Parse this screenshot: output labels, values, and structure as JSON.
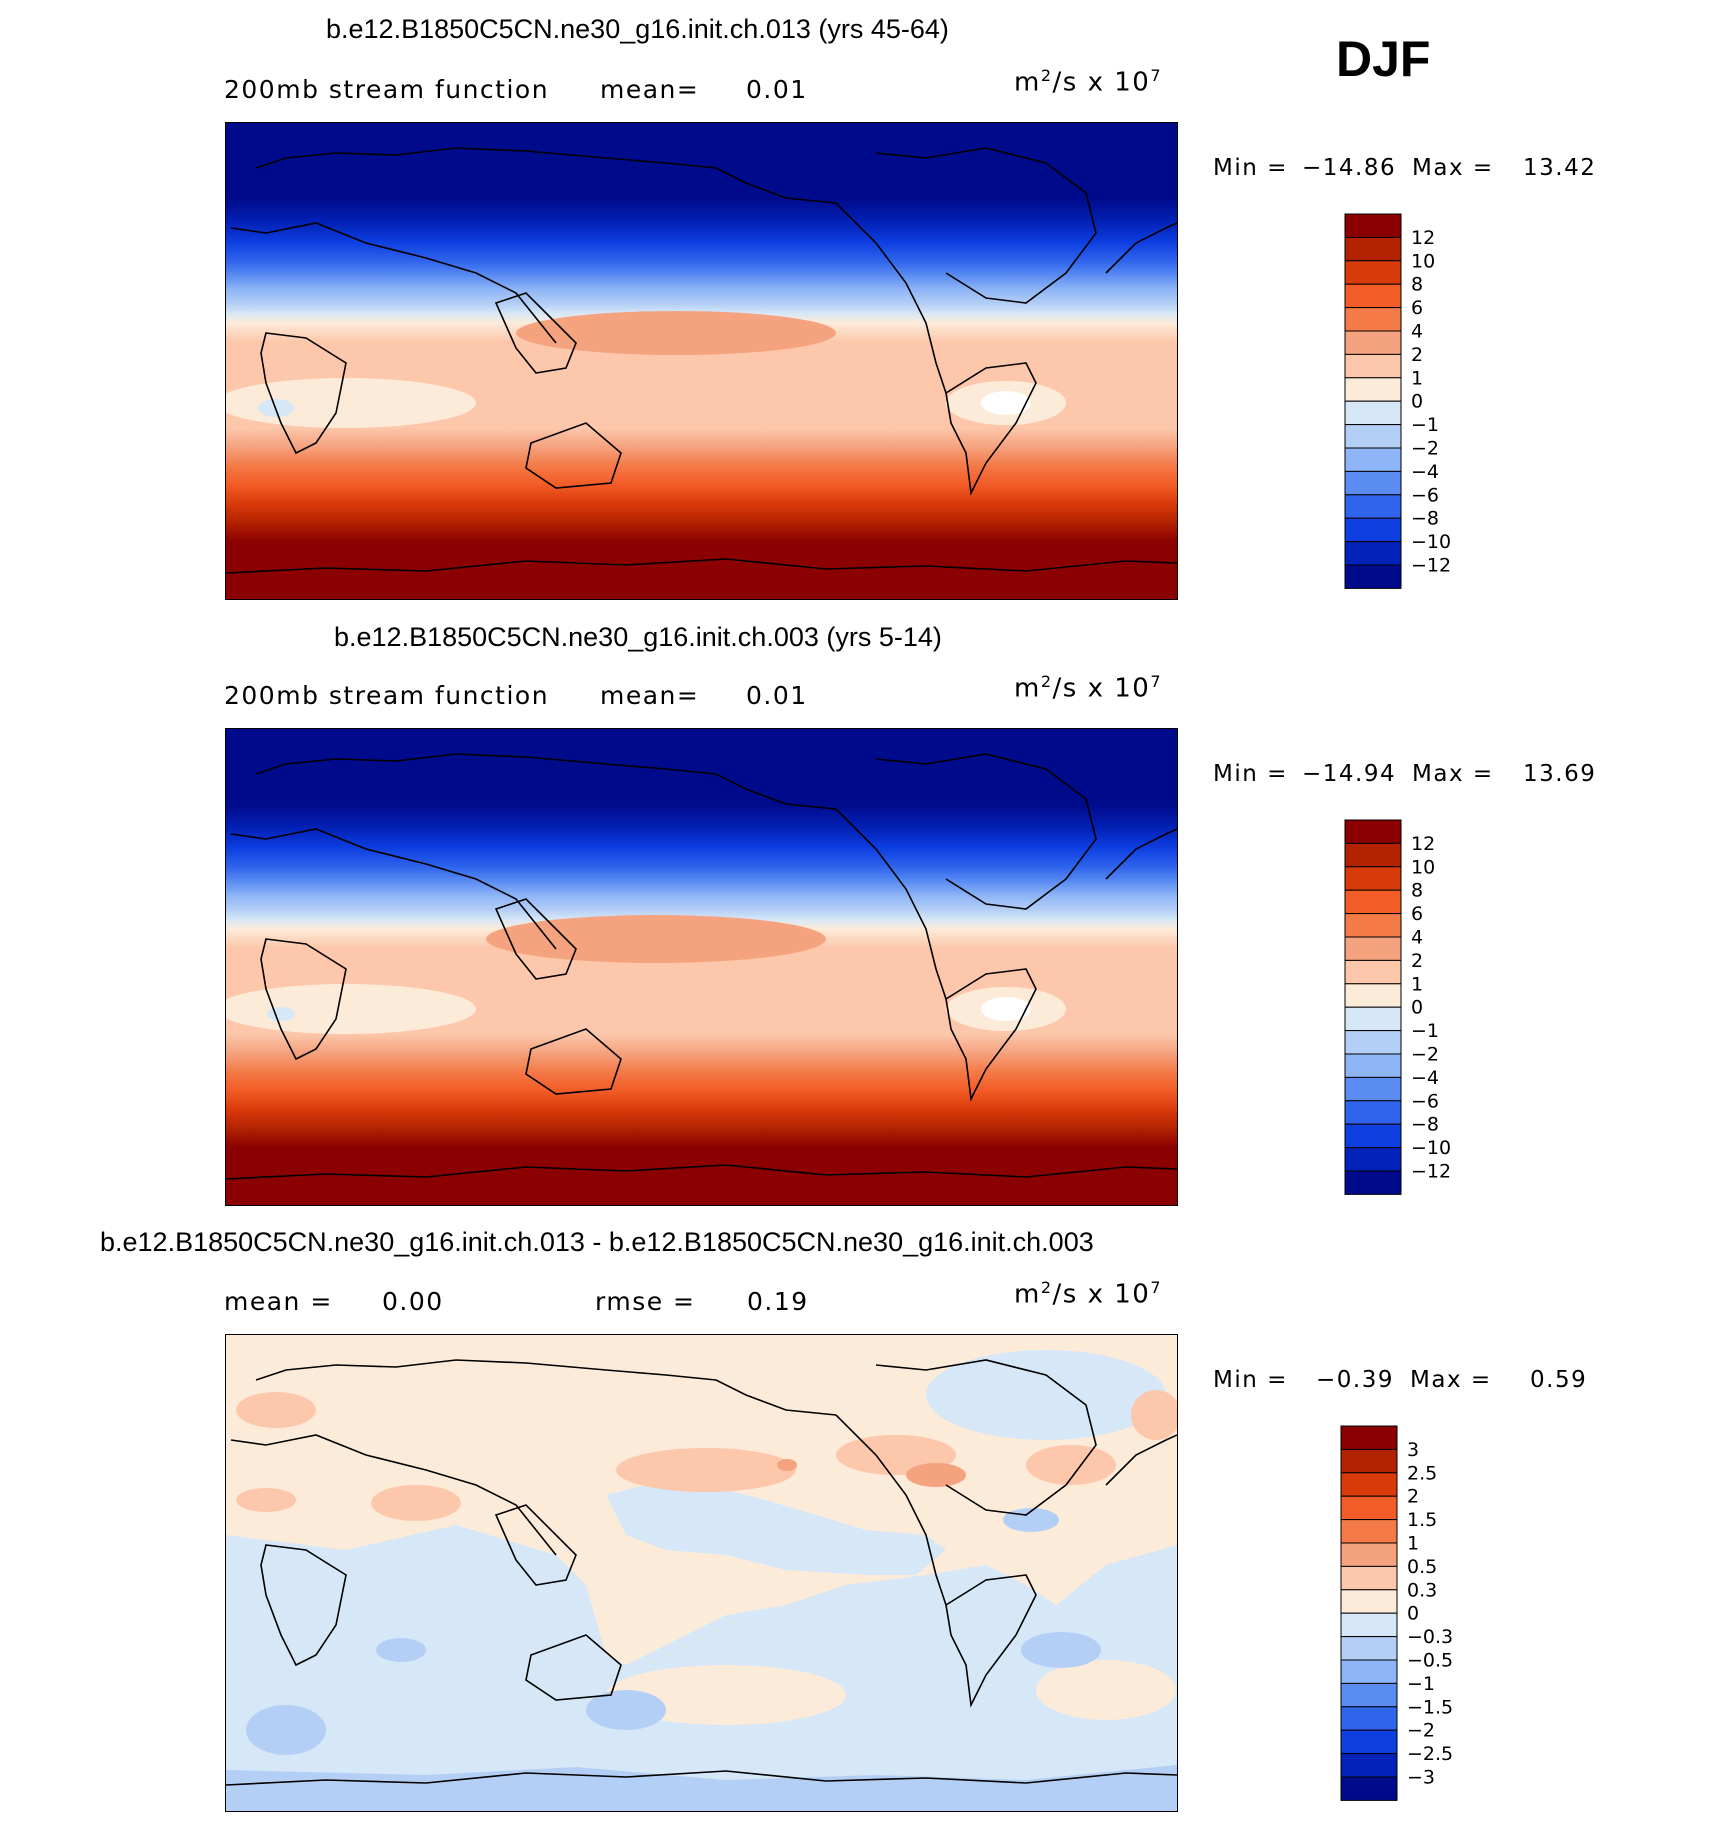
{
  "season": "DJF",
  "panels": [
    {
      "title": "b.e12.B1850C5CN.ne30_g16.init.ch.013 (yrs 45-64)",
      "left_label": "200mb stream function",
      "stat_label": "mean=",
      "stat_value": "0.01",
      "units_base": "m",
      "units_exp1": "2",
      "units_mid": "/s x 10",
      "units_exp2": "7",
      "min_label": "Min =",
      "min_value": "−14.86",
      "max_label": "Max =",
      "max_value": "13.42",
      "colorbar": {
        "labels": [
          "12",
          "10",
          "8",
          "6",
          "4",
          "2",
          "1",
          "0",
          "−1",
          "−2",
          "−4",
          "−6",
          "−8",
          "−10",
          "−12"
        ],
        "colors": [
          "#8b0000",
          "#b22200",
          "#d93a0a",
          "#f25c26",
          "#f47a48",
          "#f5a37f",
          "#fcc7ab",
          "#fdebd9",
          "#d6e7f7",
          "#b4cff5",
          "#8eb5f7",
          "#5a8cf2",
          "#2f64ec",
          "#0d3ee0",
          "#0322b8",
          "#000b8c"
        ]
      }
    },
    {
      "title": "b.e12.B1850C5CN.ne30_g16.init.ch.003 (yrs 5-14)",
      "left_label": "200mb stream function",
      "stat_label": "mean=",
      "stat_value": "0.01",
      "units_base": "m",
      "units_exp1": "2",
      "units_mid": "/s x 10",
      "units_exp2": "7",
      "min_label": "Min =",
      "min_value": "−14.94",
      "max_label": "Max =",
      "max_value": "13.69",
      "colorbar": {
        "labels": [
          "12",
          "10",
          "8",
          "6",
          "4",
          "2",
          "1",
          "0",
          "−1",
          "−2",
          "−4",
          "−6",
          "−8",
          "−10",
          "−12"
        ],
        "colors": [
          "#8b0000",
          "#b22200",
          "#d93a0a",
          "#f25c26",
          "#f47a48",
          "#f5a37f",
          "#fcc7ab",
          "#fdebd9",
          "#d6e7f7",
          "#b4cff5",
          "#8eb5f7",
          "#5a8cf2",
          "#2f64ec",
          "#0d3ee0",
          "#0322b8",
          "#000b8c"
        ]
      }
    },
    {
      "title": "b.e12.B1850C5CN.ne30_g16.init.ch.013 - b.e12.B1850C5CN.ne30_g16.init.ch.003",
      "left_label": "mean =",
      "left_value": "0.00",
      "stat_label": "rmse =",
      "stat_value": "0.19",
      "units_base": "m",
      "units_exp1": "2",
      "units_mid": "/s x 10",
      "units_exp2": "7",
      "min_label": "Min =",
      "min_value": "−0.39",
      "max_label": "Max =",
      "max_value": "0.59",
      "colorbar": {
        "labels": [
          "3",
          "2.5",
          "2",
          "1.5",
          "1",
          "0.5",
          "0.3",
          "0",
          "−0.3",
          "−0.5",
          "−1",
          "−1.5",
          "−2",
          "−2.5",
          "−3"
        ],
        "colors": [
          "#8b0000",
          "#b22200",
          "#d93a0a",
          "#f25c26",
          "#f47a48",
          "#f5a37f",
          "#fcc7ab",
          "#fdebd9",
          "#d6e7f7",
          "#b4cff5",
          "#8eb5f7",
          "#5a8cf2",
          "#2f64ec",
          "#0d3ee0",
          "#0322b8",
          "#000b8c"
        ]
      }
    }
  ]
}
